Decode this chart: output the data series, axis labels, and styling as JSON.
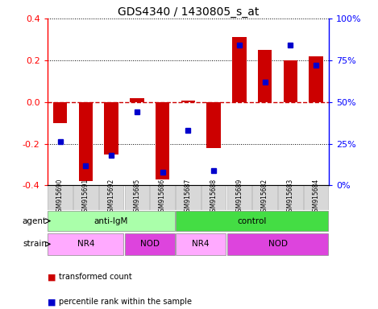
{
  "title": "GDS4340 / 1430805_s_at",
  "samples": [
    "GSM915690",
    "GSM915691",
    "GSM915692",
    "GSM915685",
    "GSM915686",
    "GSM915687",
    "GSM915688",
    "GSM915689",
    "GSM915682",
    "GSM915683",
    "GSM915684"
  ],
  "bar_values": [
    -0.1,
    -0.38,
    -0.25,
    0.02,
    -0.37,
    0.005,
    -0.22,
    0.31,
    0.25,
    0.2,
    0.22
  ],
  "dot_values": [
    26,
    12,
    18,
    44,
    8,
    33,
    9,
    84,
    62,
    84,
    72
  ],
  "ylim": [
    -0.4,
    0.4
  ],
  "yticks_left": [
    -0.4,
    -0.2,
    0.0,
    0.2,
    0.4
  ],
  "yticks_right": [
    0,
    25,
    50,
    75,
    100
  ],
  "bar_color": "#cc0000",
  "dot_color": "#0000cc",
  "agent_groups": [
    {
      "label": "anti-IgM",
      "start": 0,
      "end": 5,
      "color": "#aaffaa"
    },
    {
      "label": "control",
      "start": 5,
      "end": 11,
      "color": "#44dd44"
    }
  ],
  "strain_groups": [
    {
      "label": "NR4",
      "start": 0,
      "end": 3,
      "color": "#ffaaff"
    },
    {
      "label": "NOD",
      "start": 3,
      "end": 5,
      "color": "#dd44dd"
    },
    {
      "label": "NR4",
      "start": 5,
      "end": 7,
      "color": "#ffaaff"
    },
    {
      "label": "NOD",
      "start": 7,
      "end": 11,
      "color": "#dd44dd"
    }
  ],
  "legend_red": "transformed count",
  "legend_blue": "percentile rank within the sample"
}
